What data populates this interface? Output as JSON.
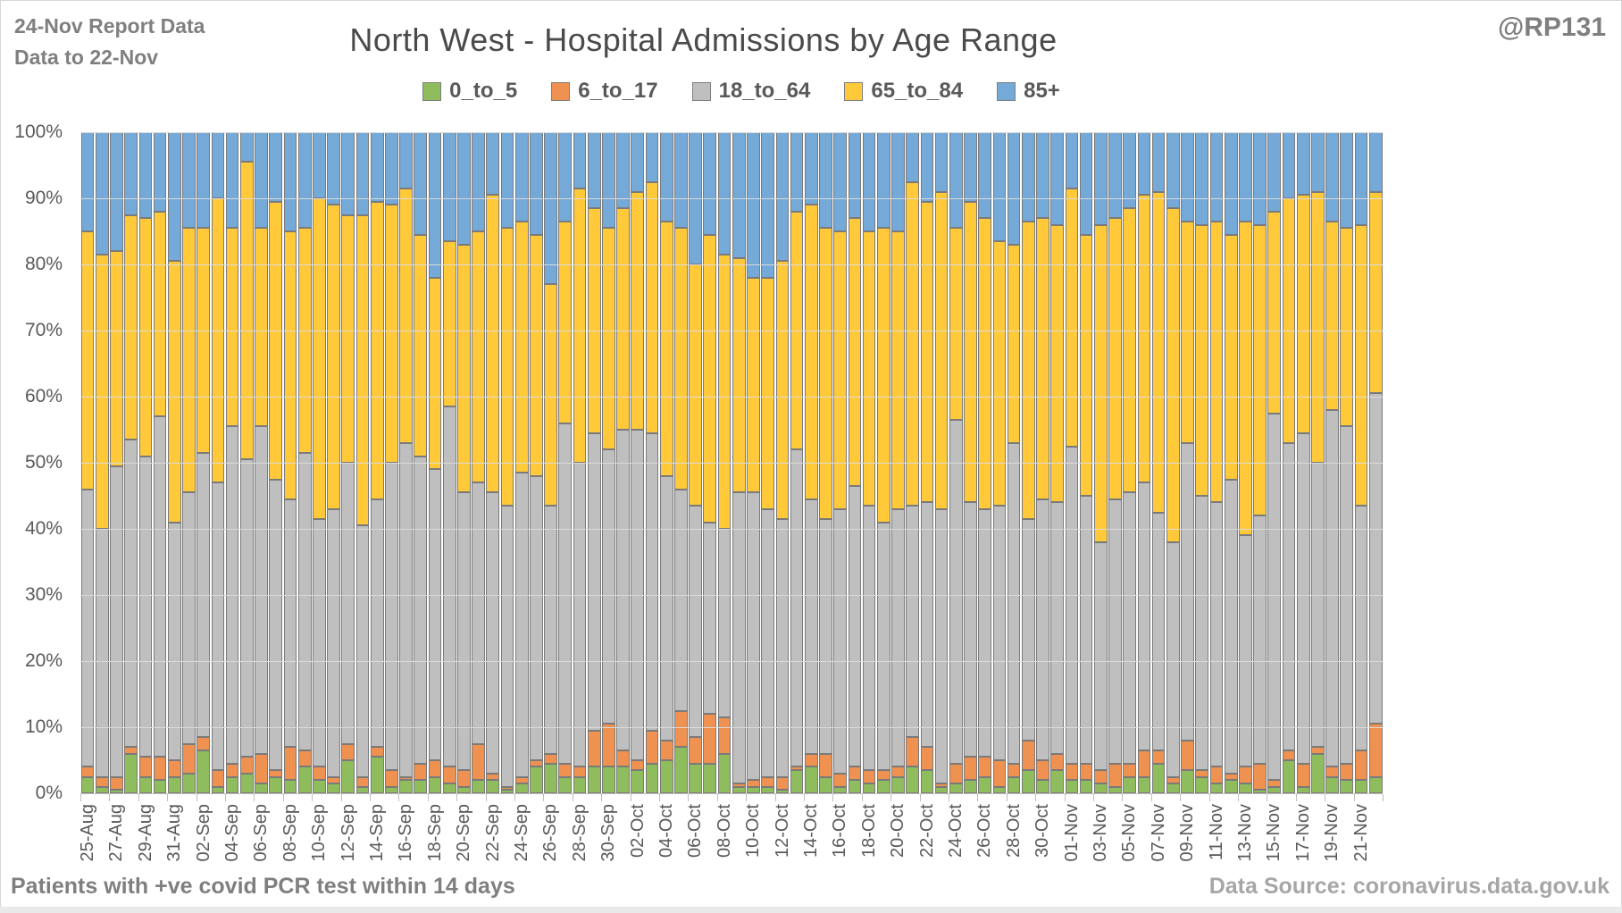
{
  "header": {
    "report_line1": "24-Nov Report Data",
    "report_line2": "Data to 22-Nov",
    "handle": "@RP131"
  },
  "title": "North West - Hospital Admissions by Age Range",
  "footer": {
    "left": "Patients with  +ve covid PCR test within 14 days",
    "right": "Data Source: coronavirus.data.gov.uk"
  },
  "colors": {
    "0_to_5": "#8fbc5c",
    "6_to_17": "#ee9151",
    "18_to_64": "#bfbfbf",
    "65_to_84": "#ffc93a",
    "85_plus": "#74a9d8",
    "segment_border": "#7a7a7a",
    "grid": "#dadada",
    "axis_text": "#595959"
  },
  "chart_data": {
    "type": "bar",
    "stacked": true,
    "percent_stacked": true,
    "title": "North West - Hospital Admissions by Age Range",
    "xlabel": "",
    "ylabel": "",
    "ylim": [
      0,
      100
    ],
    "ytick_labels": [
      "0%",
      "10%",
      "20%",
      "30%",
      "40%",
      "50%",
      "60%",
      "70%",
      "80%",
      "90%",
      "100%"
    ],
    "grid": true,
    "legend_position": "top",
    "x_label_every_n": 2,
    "categories": [
      "25-Aug",
      "26-Aug",
      "27-Aug",
      "28-Aug",
      "29-Aug",
      "30-Aug",
      "31-Aug",
      "01-Sep",
      "02-Sep",
      "03-Sep",
      "04-Sep",
      "05-Sep",
      "06-Sep",
      "07-Sep",
      "08-Sep",
      "09-Sep",
      "10-Sep",
      "11-Sep",
      "12-Sep",
      "13-Sep",
      "14-Sep",
      "15-Sep",
      "16-Sep",
      "17-Sep",
      "18-Sep",
      "19-Sep",
      "20-Sep",
      "21-Sep",
      "22-Sep",
      "23-Sep",
      "24-Sep",
      "25-Sep",
      "26-Sep",
      "27-Sep",
      "28-Sep",
      "29-Sep",
      "30-Sep",
      "01-Oct",
      "02-Oct",
      "03-Oct",
      "04-Oct",
      "05-Oct",
      "06-Oct",
      "07-Oct",
      "08-Oct",
      "09-Oct",
      "10-Oct",
      "11-Oct",
      "12-Oct",
      "13-Oct",
      "14-Oct",
      "15-Oct",
      "16-Oct",
      "17-Oct",
      "18-Oct",
      "19-Oct",
      "20-Oct",
      "21-Oct",
      "22-Oct",
      "23-Oct",
      "24-Oct",
      "25-Oct",
      "26-Oct",
      "27-Oct",
      "28-Oct",
      "29-Oct",
      "30-Oct",
      "31-Oct",
      "01-Nov",
      "02-Nov",
      "03-Nov",
      "04-Nov",
      "05-Nov",
      "06-Nov",
      "07-Nov",
      "08-Nov",
      "09-Nov",
      "10-Nov",
      "11-Nov",
      "12-Nov",
      "13-Nov",
      "14-Nov",
      "15-Nov",
      "16-Nov",
      "17-Nov",
      "18-Nov",
      "19-Nov",
      "20-Nov",
      "21-Nov",
      "22-Nov"
    ],
    "series": [
      {
        "name": "0_to_5",
        "values": [
          2.5,
          1,
          0.5,
          6,
          2.5,
          2,
          2.5,
          3,
          6.5,
          1,
          2.5,
          3,
          1.5,
          2.5,
          2,
          4,
          2,
          1.5,
          5,
          1,
          5.5,
          1,
          2,
          2,
          2.5,
          1.5,
          1,
          2,
          2,
          0.5,
          1.5,
          4,
          4.5,
          2.5,
          2.5,
          4,
          4,
          4,
          3.5,
          4.5,
          5,
          7,
          4.5,
          4.5,
          6,
          1,
          1,
          1,
          0.5,
          3.5,
          4,
          2.5,
          1,
          2,
          1.5,
          2,
          2.5,
          4,
          3.5,
          1,
          1.5,
          2,
          2.5,
          1,
          2.5,
          3.5,
          2,
          3.5,
          2,
          2,
          1.5,
          1,
          2.5,
          2.5,
          4.5,
          1.5,
          3.5,
          2.5,
          1.5,
          2,
          1.5,
          0.5,
          1,
          5,
          1,
          6,
          2.5,
          2,
          2,
          2.5
        ]
      },
      {
        "name": "6_to_17",
        "values": [
          1.5,
          1.5,
          2,
          1,
          3,
          3.5,
          2.5,
          4.5,
          2,
          2.5,
          2,
          2.5,
          4.5,
          1,
          5,
          2.5,
          2,
          1,
          2.5,
          1.5,
          1.5,
          2.5,
          0.5,
          2.5,
          2.5,
          2.5,
          2.5,
          5.5,
          1,
          0.5,
          1,
          1,
          1.5,
          2,
          1.5,
          5.5,
          6.5,
          2.5,
          1.5,
          5,
          3,
          5.5,
          4,
          7.5,
          5.5,
          0.5,
          1,
          1.5,
          2,
          0.5,
          2,
          3.5,
          2,
          2,
          2,
          1.5,
          1.5,
          4.5,
          3.5,
          0.5,
          3,
          3.5,
          3,
          4,
          2,
          4.5,
          3,
          2.5,
          2.5,
          2.5,
          2,
          3.5,
          2,
          4,
          2,
          1,
          4.5,
          1,
          2.5,
          1,
          2.5,
          4,
          1,
          1.5,
          3.5,
          1,
          1.5,
          2.5,
          4.5,
          8
        ]
      },
      {
        "name": "18_to_64",
        "values": [
          42,
          37.5,
          47,
          46.5,
          45.5,
          51.5,
          36,
          38,
          43,
          43.5,
          51,
          45,
          49.5,
          44,
          37.5,
          45,
          37.5,
          40.5,
          42.5,
          38,
          37.5,
          46.5,
          50.5,
          46.5,
          44,
          54.5,
          42,
          39.5,
          42.5,
          42.5,
          46,
          43,
          37.5,
          51.5,
          46,
          45,
          41.5,
          48.5,
          50,
          45,
          40,
          33.5,
          35,
          29,
          28.5,
          44,
          43.5,
          40.5,
          39,
          48,
          38.5,
          35.5,
          40,
          42.5,
          40,
          37.5,
          39,
          35,
          37,
          41.5,
          52,
          38.5,
          37.5,
          38.5,
          48.5,
          33.5,
          39.5,
          38,
          48,
          40.5,
          34.5,
          40,
          41,
          40.5,
          36,
          35.5,
          45,
          41.5,
          40,
          44.5,
          35,
          37.5,
          55.5,
          46.5,
          50,
          43,
          54,
          51,
          37,
          50
        ]
      },
      {
        "name": "65_to_84",
        "values": [
          39,
          41.5,
          32.5,
          34,
          36,
          31,
          39.5,
          40,
          34,
          43,
          30,
          45,
          30,
          42,
          40.5,
          34,
          48.5,
          46,
          37.5,
          47,
          45,
          39,
          38.5,
          33.5,
          29,
          25,
          37.5,
          38,
          45,
          42,
          38,
          36.5,
          33.5,
          30.5,
          41.5,
          34,
          33.5,
          33.5,
          36,
          38,
          38.5,
          39.5,
          36.5,
          43.5,
          41.5,
          35.5,
          32.5,
          35,
          39,
          36,
          44.5,
          44,
          42,
          40.5,
          41.5,
          44.5,
          42,
          49,
          45.5,
          48,
          29,
          45.5,
          44,
          40,
          30,
          45,
          42.5,
          42,
          39,
          39.5,
          48,
          42.5,
          43,
          43.5,
          48.5,
          50.5,
          33.5,
          41,
          42.5,
          37,
          47.5,
          44,
          30.5,
          37,
          36,
          41,
          28.5,
          30,
          42.5,
          30.5
        ]
      },
      {
        "name": "85+",
        "values": [
          15,
          18.5,
          18,
          12.5,
          13,
          12,
          19.5,
          14.5,
          14.5,
          10,
          14.5,
          4.5,
          14.5,
          10.5,
          15,
          14.5,
          10,
          11,
          12.5,
          12.5,
          10.5,
          11,
          8.5,
          15.5,
          22,
          16.5,
          17,
          15,
          9.5,
          14.5,
          13.5,
          15.5,
          23,
          13.5,
          8.5,
          11.5,
          14.5,
          11.5,
          9,
          7.5,
          13.5,
          14.5,
          20,
          15.5,
          18.5,
          19,
          22,
          22,
          19.5,
          12,
          11,
          14.5,
          15,
          13,
          15,
          14.5,
          15,
          7.5,
          10.5,
          9,
          14.5,
          10.5,
          13,
          16.5,
          17,
          13.5,
          13,
          14,
          8.5,
          15.5,
          14,
          13,
          11.5,
          9.5,
          9,
          11.5,
          13.5,
          14,
          13.5,
          15.5,
          13.5,
          14,
          12,
          10,
          9.5,
          9,
          13.5,
          14.5,
          14,
          9
        ]
      }
    ]
  }
}
